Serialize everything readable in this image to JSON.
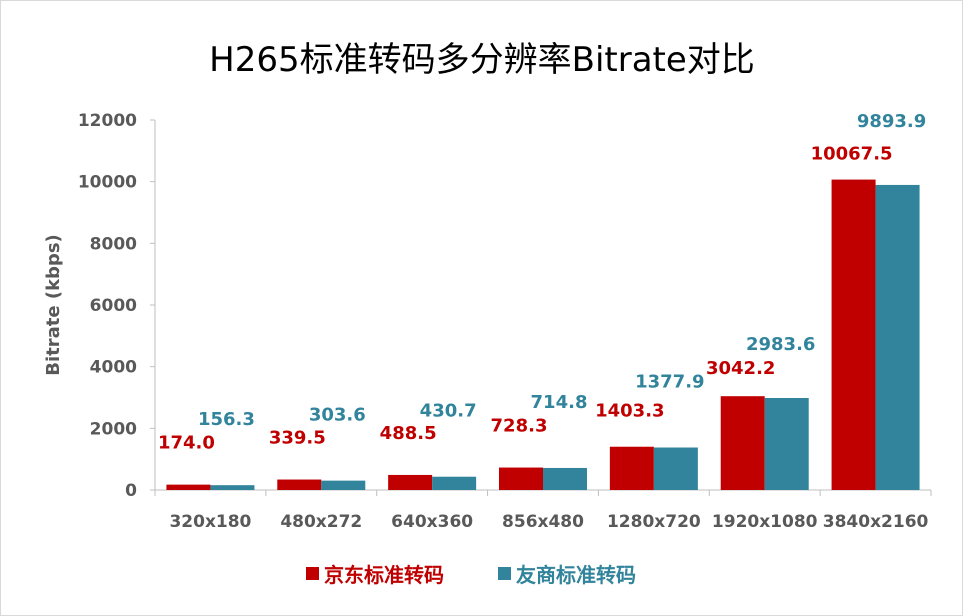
{
  "chart_data": {
    "type": "bar",
    "title": "H265标准转码多分辨率Bitrate对比",
    "xlabel": "",
    "ylabel": "Bitrate (kbps)",
    "ylim": [
      0,
      12000
    ],
    "yticks": [
      0,
      2000,
      4000,
      6000,
      8000,
      10000,
      12000
    ],
    "grid": false,
    "legend_position": "bottom",
    "categories": [
      "320x180",
      "480x272",
      "640x360",
      "856x480",
      "1280x720",
      "1920x1080",
      "3840x2160"
    ],
    "series": [
      {
        "name": "京东标准转码",
        "color": "#C00000",
        "values": [
          174.0,
          339.5,
          488.5,
          728.3,
          1403.3,
          3042.2,
          10067.5
        ],
        "labels": [
          "174.0",
          "339.5",
          "488.5",
          "728.3",
          "1403.3",
          "3042.2",
          "10067.5"
        ]
      },
      {
        "name": "友商标准转码",
        "color": "#31849B",
        "values": [
          156.3,
          303.6,
          430.7,
          714.8,
          1377.9,
          2983.6,
          9893.9
        ],
        "labels": [
          "156.3",
          "303.6",
          "430.7",
          "714.8",
          "1377.9",
          "2983.6",
          "9893.9"
        ]
      }
    ]
  }
}
